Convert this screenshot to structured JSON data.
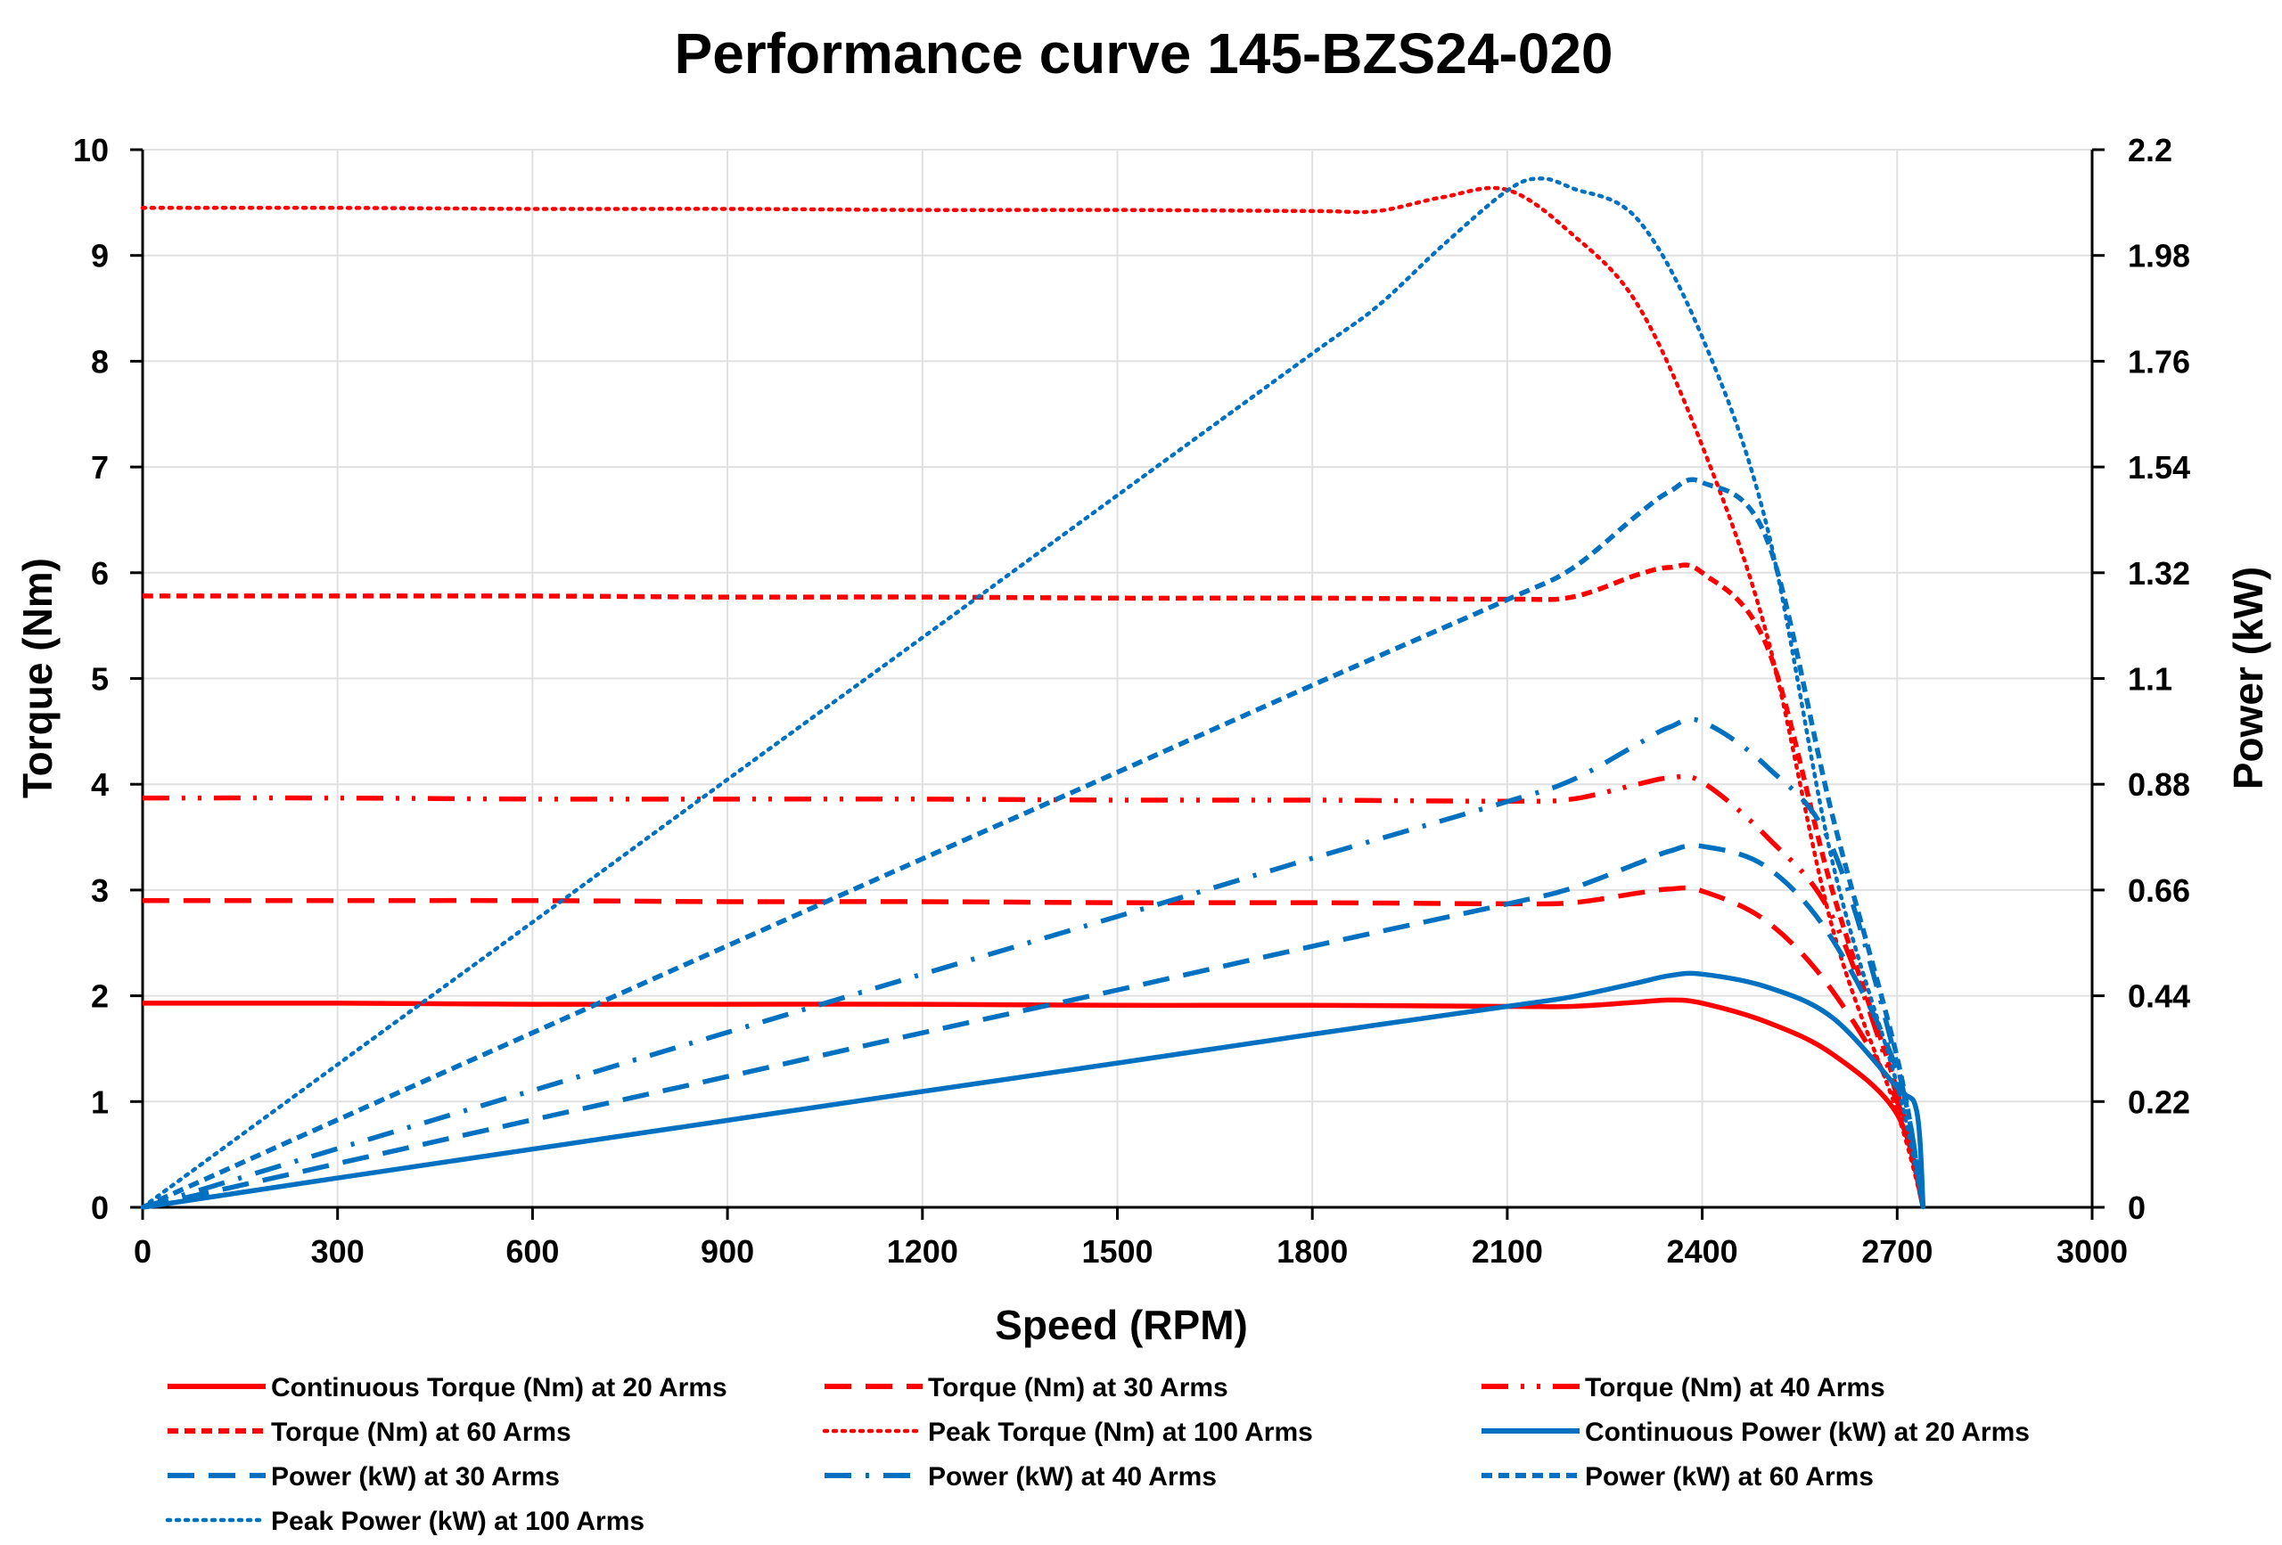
{
  "chart_data": {
    "type": "line",
    "title": "Performance curve 145-BZS24-020",
    "xlabel": "Speed (RPM)",
    "ylabel": "Torque (Nm)",
    "y2label": "Power (kW)",
    "xlim": [
      0,
      3000
    ],
    "ylim": [
      0,
      10
    ],
    "y2lim": [
      0,
      2.2
    ],
    "xticks": [
      "0",
      "300",
      "600",
      "900",
      "1200",
      "1500",
      "1800",
      "2100",
      "2400",
      "2700",
      "3000"
    ],
    "yticks": [
      "0",
      "1",
      "2",
      "3",
      "4",
      "5",
      "6",
      "7",
      "8",
      "9",
      "10"
    ],
    "y2ticks": [
      "0",
      "0.22",
      "0.44",
      "0.66",
      "0.88",
      "1.1",
      "1.32",
      "1.54",
      "1.76",
      "1.98",
      "2.2"
    ],
    "grid": true,
    "legend_position": "bottom",
    "colors": {
      "torque": "#FF0000",
      "power": "#0070C0"
    },
    "series": [
      {
        "name": "Continuous Torque (Nm) at 20 Arms",
        "axis": "left",
        "color": "#FF0000",
        "style": "solid",
        "points": [
          [
            0,
            1.93
          ],
          [
            300,
            1.93
          ],
          [
            600,
            1.92
          ],
          [
            900,
            1.92
          ],
          [
            1200,
            1.92
          ],
          [
            1500,
            1.91
          ],
          [
            1800,
            1.91
          ],
          [
            2100,
            1.9
          ],
          [
            2200,
            1.9
          ],
          [
            2300,
            1.94
          ],
          [
            2350,
            1.96
          ],
          [
            2400,
            1.93
          ],
          [
            2500,
            1.75
          ],
          [
            2600,
            1.45
          ],
          [
            2700,
            0.88
          ],
          [
            2740,
            0
          ]
        ]
      },
      {
        "name": "Torque (Nm) at 30 Arms",
        "axis": "left",
        "color": "#FF0000",
        "style": "long-dash",
        "points": [
          [
            0,
            2.9
          ],
          [
            300,
            2.9
          ],
          [
            600,
            2.9
          ],
          [
            900,
            2.89
          ],
          [
            1200,
            2.89
          ],
          [
            1500,
            2.88
          ],
          [
            1800,
            2.88
          ],
          [
            2100,
            2.87
          ],
          [
            2200,
            2.88
          ],
          [
            2300,
            2.97
          ],
          [
            2350,
            3.01
          ],
          [
            2400,
            2.99
          ],
          [
            2500,
            2.7
          ],
          [
            2600,
            2.05
          ],
          [
            2700,
            1.0
          ],
          [
            2740,
            0
          ]
        ]
      },
      {
        "name": "Torque (Nm) at 40 Arms",
        "axis": "left",
        "color": "#FF0000",
        "style": "long-dash-dot-dot",
        "points": [
          [
            0,
            3.87
          ],
          [
            300,
            3.87
          ],
          [
            600,
            3.86
          ],
          [
            900,
            3.86
          ],
          [
            1200,
            3.86
          ],
          [
            1500,
            3.85
          ],
          [
            1800,
            3.85
          ],
          [
            2100,
            3.84
          ],
          [
            2200,
            3.86
          ],
          [
            2300,
            4.0
          ],
          [
            2350,
            4.06
          ],
          [
            2400,
            4.02
          ],
          [
            2500,
            3.5
          ],
          [
            2600,
            2.75
          ],
          [
            2700,
            1.05
          ],
          [
            2740,
            0
          ]
        ]
      },
      {
        "name": "Torque (Nm) at 60 Arms",
        "axis": "left",
        "color": "#FF0000",
        "style": "dash",
        "points": [
          [
            0,
            5.78
          ],
          [
            300,
            5.78
          ],
          [
            600,
            5.78
          ],
          [
            900,
            5.77
          ],
          [
            1200,
            5.77
          ],
          [
            1500,
            5.76
          ],
          [
            1800,
            5.76
          ],
          [
            2100,
            5.75
          ],
          [
            2200,
            5.77
          ],
          [
            2300,
            5.98
          ],
          [
            2350,
            6.05
          ],
          [
            2400,
            6.0
          ],
          [
            2500,
            5.3
          ],
          [
            2600,
            3.0
          ],
          [
            2700,
            1.1
          ],
          [
            2740,
            0
          ]
        ]
      },
      {
        "name": "Peak Torque (Nm) at 100 Arms",
        "axis": "left",
        "color": "#FF0000",
        "style": "dot",
        "points": [
          [
            0,
            9.45
          ],
          [
            300,
            9.45
          ],
          [
            600,
            9.44
          ],
          [
            900,
            9.44
          ],
          [
            1200,
            9.43
          ],
          [
            1500,
            9.43
          ],
          [
            1800,
            9.42
          ],
          [
            1900,
            9.42
          ],
          [
            2000,
            9.55
          ],
          [
            2100,
            9.62
          ],
          [
            2200,
            9.2
          ],
          [
            2300,
            8.54
          ],
          [
            2400,
            7.2
          ],
          [
            2500,
            5.4
          ],
          [
            2600,
            2.65
          ],
          [
            2700,
            0.9
          ],
          [
            2740,
            0
          ]
        ]
      },
      {
        "name": "Continuous Power (kW) at 20 Arms",
        "axis": "right",
        "color": "#0070C0",
        "style": "solid",
        "points": [
          [
            0,
            0
          ],
          [
            300,
            0.061
          ],
          [
            600,
            0.121
          ],
          [
            900,
            0.181
          ],
          [
            1200,
            0.241
          ],
          [
            1500,
            0.3
          ],
          [
            1800,
            0.36
          ],
          [
            2100,
            0.418
          ],
          [
            2200,
            0.438
          ],
          [
            2300,
            0.467
          ],
          [
            2350,
            0.482
          ],
          [
            2400,
            0.485
          ],
          [
            2500,
            0.458
          ],
          [
            2600,
            0.395
          ],
          [
            2700,
            0.249
          ],
          [
            2730,
            0.2
          ],
          [
            2740,
            0
          ]
        ]
      },
      {
        "name": "Power (kW) at 30 Arms",
        "axis": "right",
        "color": "#0070C0",
        "style": "long-dash",
        "points": [
          [
            0,
            0
          ],
          [
            300,
            0.091
          ],
          [
            600,
            0.182
          ],
          [
            900,
            0.272
          ],
          [
            1200,
            0.363
          ],
          [
            1500,
            0.452
          ],
          [
            1800,
            0.543
          ],
          [
            2100,
            0.631
          ],
          [
            2200,
            0.664
          ],
          [
            2300,
            0.715
          ],
          [
            2350,
            0.741
          ],
          [
            2400,
            0.751
          ],
          [
            2500,
            0.707
          ],
          [
            2600,
            0.558
          ],
          [
            2700,
            0.283
          ],
          [
            2740,
            0
          ]
        ]
      },
      {
        "name": "Power (kW) at 40 Arms",
        "axis": "right",
        "color": "#0070C0",
        "style": "long-dash-dot",
        "points": [
          [
            0,
            0
          ],
          [
            300,
            0.122
          ],
          [
            600,
            0.243
          ],
          [
            900,
            0.364
          ],
          [
            1200,
            0.485
          ],
          [
            1500,
            0.605
          ],
          [
            1800,
            0.726
          ],
          [
            2100,
            0.844
          ],
          [
            2200,
            0.889
          ],
          [
            2300,
            0.963
          ],
          [
            2350,
            0.999
          ],
          [
            2400,
            1.01
          ],
          [
            2500,
            0.916
          ],
          [
            2600,
            0.749
          ],
          [
            2700,
            0.297
          ],
          [
            2740,
            0
          ]
        ]
      },
      {
        "name": "Power (kW) at 60 Arms",
        "axis": "right",
        "color": "#0070C0",
        "style": "dash",
        "points": [
          [
            0,
            0
          ],
          [
            300,
            0.182
          ],
          [
            600,
            0.363
          ],
          [
            900,
            0.544
          ],
          [
            1200,
            0.725
          ],
          [
            1500,
            0.905
          ],
          [
            1800,
            1.086
          ],
          [
            2100,
            1.264
          ],
          [
            2200,
            1.329
          ],
          [
            2300,
            1.44
          ],
          [
            2350,
            1.489
          ],
          [
            2400,
            1.508
          ],
          [
            2500,
            1.388
          ],
          [
            2600,
            0.817
          ],
          [
            2700,
            0.311
          ],
          [
            2740,
            0
          ]
        ]
      },
      {
        "name": "Peak Power (kW) at 100 Arms",
        "axis": "right",
        "color": "#0070C0",
        "style": "dot",
        "points": [
          [
            0,
            0
          ],
          [
            300,
            0.297
          ],
          [
            600,
            0.593
          ],
          [
            900,
            0.89
          ],
          [
            1200,
            1.185
          ],
          [
            1500,
            1.481
          ],
          [
            1800,
            1.776
          ],
          [
            1900,
            1.874
          ],
          [
            2000,
            2.0
          ],
          [
            2100,
            2.115
          ],
          [
            2150,
            2.14
          ],
          [
            2200,
            2.12
          ],
          [
            2300,
            2.056
          ],
          [
            2400,
            1.81
          ],
          [
            2500,
            1.414
          ],
          [
            2600,
            0.721
          ],
          [
            2700,
            0.254
          ],
          [
            2740,
            0
          ]
        ]
      }
    ]
  }
}
